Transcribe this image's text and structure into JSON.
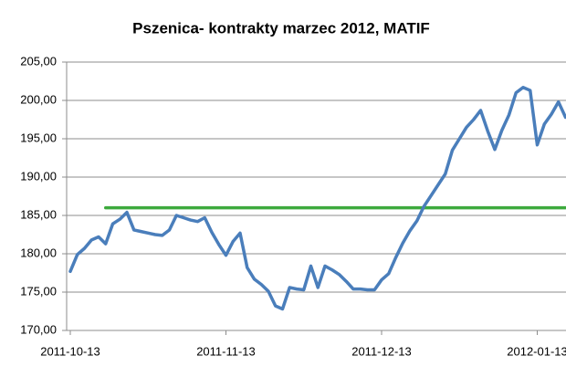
{
  "chart_data": {
    "type": "line",
    "title": "Pszenica- kontrakty marzec 2012, MATIF",
    "categories": [
      "2011-10-13",
      null,
      null,
      null,
      null,
      null,
      null,
      null,
      null,
      null,
      null,
      null,
      null,
      null,
      null,
      null,
      null,
      null,
      null,
      null,
      null,
      null,
      "2011-11-13",
      null,
      null,
      null,
      null,
      null,
      null,
      null,
      null,
      null,
      null,
      null,
      null,
      null,
      null,
      null,
      null,
      null,
      null,
      null,
      null,
      null,
      "2011-12-13",
      null,
      null,
      null,
      null,
      null,
      null,
      null,
      null,
      null,
      null,
      null,
      null,
      null,
      null,
      null,
      null,
      null,
      null,
      null,
      null,
      null,
      "2012-01-13",
      null,
      null,
      null,
      null
    ],
    "series": [
      {
        "color": "#4a7ebb",
        "values": [
          177.7,
          179.9,
          180.7,
          181.8,
          182.2,
          181.3,
          183.9,
          184.5,
          185.4,
          183.1,
          182.9,
          182.7,
          182.5,
          182.4,
          183.1,
          185,
          184.7,
          184.4,
          184.2,
          184.7,
          182.8,
          181.2,
          179.8,
          181.6,
          182.7,
          178.2,
          176.7,
          176,
          175.1,
          173.2,
          172.8,
          175.6,
          175.4,
          175.3,
          178.4,
          175.6,
          178.4,
          177.9,
          177.3,
          176.4,
          175.4,
          175.4,
          175.3,
          175.3,
          176.6,
          177.4,
          179.5,
          181.4,
          183,
          184.3,
          186.2,
          187.6,
          189,
          190.4,
          193.5,
          195,
          196.5,
          197.5,
          198.7,
          196,
          193.6,
          196.1,
          198.1,
          201,
          201.7,
          201.3,
          194.2,
          196.9,
          198.2,
          199.8,
          197.8
        ]
      },
      {
        "color": "#3daa3d",
        "values": [
          null,
          null,
          null,
          null,
          null,
          186,
          186,
          186,
          186,
          186,
          186,
          186,
          186,
          186,
          186,
          186,
          186,
          186,
          186,
          186,
          186,
          186,
          186,
          186,
          186,
          186,
          186,
          186,
          186,
          186,
          186,
          186,
          186,
          186,
          186,
          186,
          186,
          186,
          186,
          186,
          186,
          186,
          186,
          186,
          186,
          186,
          186,
          186,
          186,
          186,
          186,
          186,
          186,
          186,
          186,
          186,
          186,
          186,
          186,
          186,
          186,
          186,
          186,
          186,
          186,
          186,
          186,
          186,
          186,
          186,
          186
        ]
      }
    ],
    "ylim": [
      170,
      205
    ],
    "yticks": [
      {
        "value": 170,
        "label": "170,00"
      },
      {
        "value": 175,
        "label": "175,00"
      },
      {
        "value": 180,
        "label": "180,00"
      },
      {
        "value": 185,
        "label": "185,00"
      },
      {
        "value": 190,
        "label": "190,00"
      },
      {
        "value": 195,
        "label": "195,00"
      },
      {
        "value": 200,
        "label": "200,00"
      },
      {
        "value": 205,
        "label": "205,00"
      }
    ],
    "grid": true
  }
}
